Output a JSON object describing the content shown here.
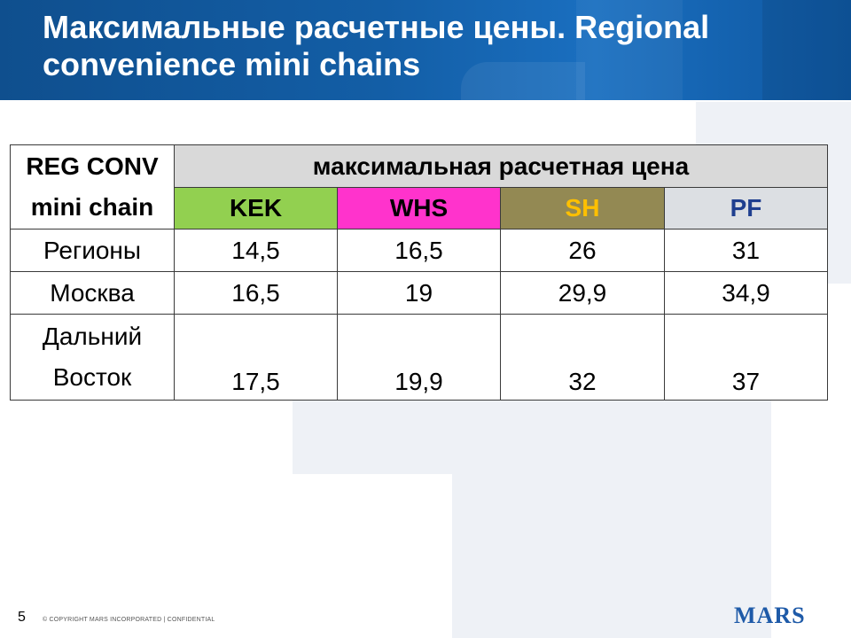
{
  "slide": {
    "title": "Максимальные расчетные цены. Regional convenience mini chains",
    "page_number": "5",
    "copyright": "© COPYRIGHT MARS INCORPORATED  |  CONFIDENTIAL",
    "logo_text": "MARS"
  },
  "table": {
    "corner_line1": "REG CONV",
    "corner_line2": "mini chain",
    "group_header": "максимальная  расчетная  цена",
    "columns": [
      "KEK",
      "WHS",
      "SH",
      "PF"
    ],
    "column_colors": {
      "KEK": "#92d050",
      "WHS": "#ff33cc",
      "SH": "#938953",
      "PF": "#dcdfe3"
    },
    "rows": [
      {
        "label_line1": "Регионы",
        "label_line2": "",
        "values": [
          "14,5",
          "16,5",
          "26",
          "31"
        ]
      },
      {
        "label_line1": "Москва",
        "label_line2": "",
        "values": [
          "16,5",
          "19",
          "29,9",
          "34,9"
        ]
      },
      {
        "label_line1": "Дальний",
        "label_line2": "Восток",
        "values": [
          "17,5",
          "19,9",
          "32",
          "37"
        ]
      }
    ]
  }
}
